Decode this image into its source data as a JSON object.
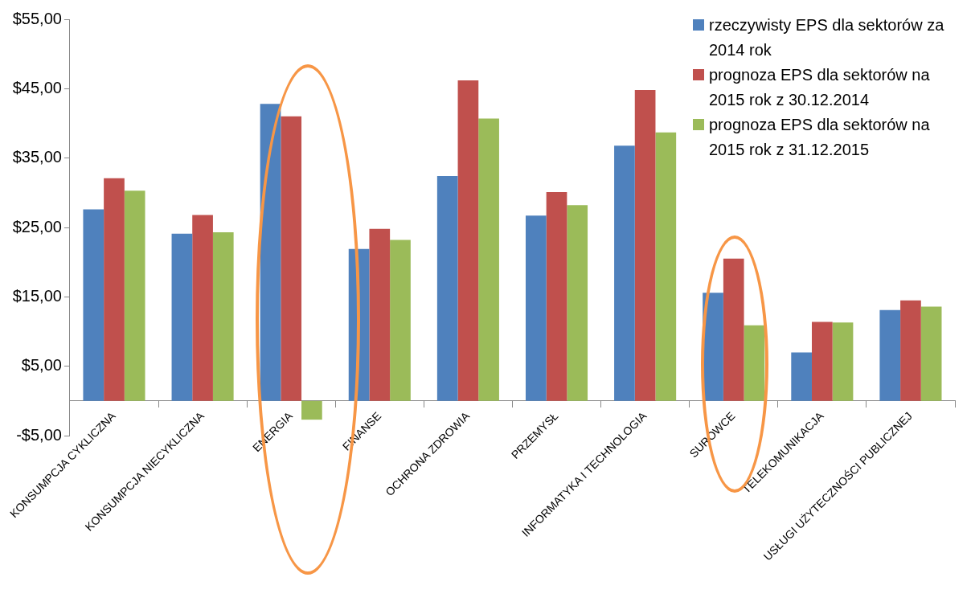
{
  "chart_data": {
    "type": "bar",
    "categories": [
      "KONSUMPCJA CYKLICZNA",
      "KONSUMPCJA NIECYKLICZNA",
      "ENERGIA",
      "FINANSE",
      "OCHRONA ZDROWIA",
      "PRZEMYSŁ",
      "INFORMATYKA I TECHNOLOGIA",
      "SUROWCE",
      "TELEKOMUNIKACJA",
      "USŁUGI UŻYTECZNOŚCI PUBLICZNEJ"
    ],
    "series": [
      {
        "name": "rzeczywisty EPS dla sektorów za 2014 rok",
        "color": "#4f81bd",
        "values": [
          27.6,
          24.1,
          42.8,
          21.9,
          32.4,
          26.7,
          36.8,
          15.6,
          7.0,
          13.1
        ]
      },
      {
        "name": "prognoza EPS dla sektorów na 2015 rok z 30.12.2014",
        "color": "#c0504d",
        "values": [
          32.1,
          26.8,
          41.0,
          24.8,
          46.2,
          30.1,
          44.8,
          20.5,
          11.4,
          14.5
        ]
      },
      {
        "name": "prognoza EPS dla sektorów na 2015 rok z 31.12.2015",
        "color": "#9bbb59",
        "values": [
          30.3,
          24.3,
          -2.7,
          23.2,
          40.7,
          28.2,
          38.7,
          10.9,
          11.3,
          13.6
        ]
      }
    ],
    "ylim": [
      -5,
      55
    ],
    "yticks": [
      {
        "value": -5,
        "label": "-$5,00"
      },
      {
        "value": 5,
        "label": "$5,00"
      },
      {
        "value": 15,
        "label": "$15,00"
      },
      {
        "value": 25,
        "label": "$25,00"
      },
      {
        "value": 35,
        "label": "$35,00"
      },
      {
        "value": 45,
        "label": "$45,00"
      },
      {
        "value": 55,
        "label": "$55,00"
      }
    ],
    "legend": "top right"
  }
}
